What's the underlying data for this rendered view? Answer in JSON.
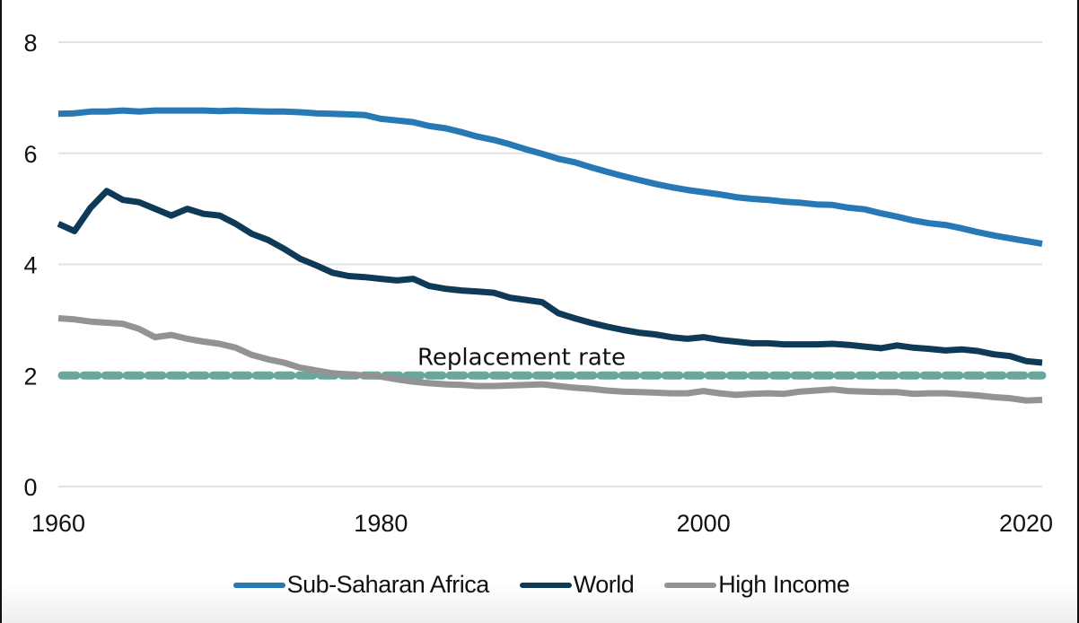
{
  "chart_data": {
    "type": "line",
    "title": "",
    "xlabel": "",
    "ylabel": "",
    "xlim": [
      1960,
      2021
    ],
    "ylim": [
      0,
      8
    ],
    "yticks": [
      0,
      2,
      4,
      6,
      8
    ],
    "xticks": [
      1960,
      1980,
      2000,
      2020
    ],
    "ytick_labels": [
      "0",
      "2",
      "4",
      "6",
      "8"
    ],
    "xtick_labels": [
      "1960",
      "1980",
      "2000",
      "2020"
    ],
    "grid": "horizontal",
    "legend_position": "bottom-center",
    "x": [
      1960,
      1961,
      1962,
      1963,
      1964,
      1965,
      1966,
      1967,
      1968,
      1969,
      1970,
      1971,
      1972,
      1973,
      1974,
      1975,
      1976,
      1977,
      1978,
      1979,
      1980,
      1981,
      1982,
      1983,
      1984,
      1985,
      1986,
      1987,
      1988,
      1989,
      1990,
      1991,
      1992,
      1993,
      1994,
      1995,
      1996,
      1997,
      1998,
      1999,
      2000,
      2001,
      2002,
      2003,
      2004,
      2005,
      2006,
      2007,
      2008,
      2009,
      2010,
      2011,
      2012,
      2013,
      2014,
      2015,
      2016,
      2017,
      2018,
      2019,
      2020,
      2021
    ],
    "series": [
      {
        "name": "Sub-Saharan Africa",
        "color": "#2779b5",
        "values": [
          6.71,
          6.72,
          6.75,
          6.75,
          6.77,
          6.75,
          6.77,
          6.77,
          6.77,
          6.77,
          6.76,
          6.77,
          6.76,
          6.75,
          6.75,
          6.74,
          6.72,
          6.71,
          6.7,
          6.69,
          6.62,
          6.59,
          6.56,
          6.49,
          6.45,
          6.38,
          6.3,
          6.24,
          6.16,
          6.07,
          5.99,
          5.9,
          5.84,
          5.75,
          5.67,
          5.59,
          5.52,
          5.45,
          5.39,
          5.34,
          5.3,
          5.26,
          5.21,
          5.18,
          5.16,
          5.13,
          5.11,
          5.08,
          5.07,
          5.02,
          4.99,
          4.92,
          4.86,
          4.79,
          4.74,
          4.71,
          4.65,
          4.58,
          4.52,
          4.47,
          4.42,
          4.37
        ]
      },
      {
        "name": "World",
        "color": "#0e3a57",
        "values": [
          4.73,
          4.6,
          5.02,
          5.32,
          5.16,
          5.12,
          5.0,
          4.88,
          5.0,
          4.91,
          4.88,
          4.73,
          4.55,
          4.44,
          4.28,
          4.1,
          3.98,
          3.85,
          3.79,
          3.77,
          3.74,
          3.71,
          3.74,
          3.61,
          3.56,
          3.53,
          3.51,
          3.49,
          3.4,
          3.36,
          3.32,
          3.12,
          3.03,
          2.95,
          2.88,
          2.82,
          2.77,
          2.74,
          2.69,
          2.66,
          2.69,
          2.64,
          2.61,
          2.58,
          2.58,
          2.56,
          2.56,
          2.56,
          2.57,
          2.55,
          2.52,
          2.49,
          2.54,
          2.5,
          2.48,
          2.45,
          2.47,
          2.44,
          2.38,
          2.35,
          2.26,
          2.23
        ]
      },
      {
        "name": "High Income",
        "color": "#939396",
        "values": [
          3.03,
          3.01,
          2.97,
          2.95,
          2.93,
          2.84,
          2.69,
          2.73,
          2.66,
          2.61,
          2.57,
          2.5,
          2.37,
          2.29,
          2.23,
          2.14,
          2.09,
          2.04,
          2.02,
          2.0,
          1.98,
          1.93,
          1.89,
          1.86,
          1.84,
          1.83,
          1.81,
          1.81,
          1.82,
          1.83,
          1.84,
          1.81,
          1.78,
          1.76,
          1.73,
          1.71,
          1.7,
          1.69,
          1.68,
          1.68,
          1.72,
          1.68,
          1.65,
          1.67,
          1.68,
          1.67,
          1.71,
          1.73,
          1.75,
          1.72,
          1.71,
          1.7,
          1.7,
          1.67,
          1.68,
          1.68,
          1.66,
          1.64,
          1.61,
          1.59,
          1.55,
          1.56
        ]
      }
    ],
    "reference_line": {
      "label": "Replacement rate",
      "value": 2.0,
      "color": "#6aa69c",
      "style": "dashed"
    },
    "gridline_color": "#e2e2e2"
  }
}
